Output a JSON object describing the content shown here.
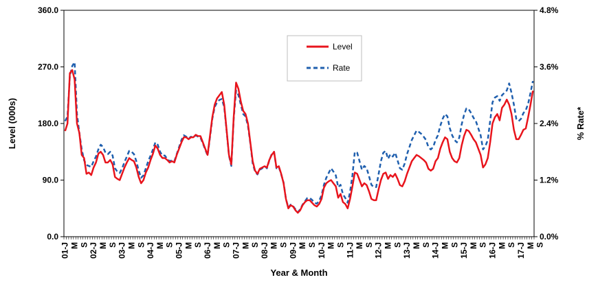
{
  "chart_data": {
    "type": "line",
    "xlabel": "Year & Month",
    "ylabel": "Level (000s)",
    "y2label": "% Rate*",
    "ylim": [
      0,
      360
    ],
    "y2lim": [
      0,
      4.8
    ],
    "yticks": [
      "0.0",
      "90.0",
      "180.0",
      "270.0",
      "360.0"
    ],
    "y2ticks": [
      "0.0%",
      "1.2%",
      "2.4%",
      "3.6%",
      "4.8%"
    ],
    "xtick_labels": [
      "01-J",
      "M",
      "S",
      "02-J",
      "M",
      "S",
      "03-J",
      "M",
      "S",
      "04-J",
      "M",
      "S",
      "05-J",
      "M",
      "S",
      "06-J",
      "M",
      "S",
      "07-J",
      "M",
      "S",
      "08-J",
      "M",
      "S",
      "09-J",
      "M",
      "S",
      "10-J",
      "M",
      "S",
      "11-J",
      "M",
      "S",
      "12-J",
      "M",
      "S",
      "13-J",
      "M",
      "S",
      "14-J",
      "M",
      "S",
      "15-J",
      "M",
      "S",
      "16-J",
      "M",
      "S",
      "17-J",
      "M",
      "S"
    ],
    "grid": false,
    "legend_position": "top-center",
    "colors": {
      "level": "#e8141c",
      "rate": "#1f5fae"
    },
    "series": [
      {
        "name": "Level",
        "axis": "left",
        "style": "solid",
        "values": [
          168,
          180,
          260,
          265,
          250,
          180,
          165,
          130,
          125,
          100,
          102,
          98,
          110,
          118,
          132,
          135,
          130,
          118,
          118,
          122,
          115,
          95,
          92,
          90,
          100,
          110,
          118,
          125,
          122,
          120,
          110,
          95,
          85,
          90,
          102,
          110,
          122,
          132,
          145,
          140,
          130,
          125,
          125,
          122,
          118,
          120,
          118,
          130,
          140,
          150,
          158,
          158,
          155,
          158,
          158,
          162,
          160,
          160,
          150,
          140,
          130,
          160,
          190,
          210,
          220,
          225,
          230,
          210,
          170,
          130,
          115,
          190,
          245,
          235,
          215,
          200,
          195,
          180,
          150,
          120,
          105,
          100,
          108,
          110,
          112,
          110,
          122,
          130,
          135,
          110,
          112,
          100,
          85,
          60,
          45,
          50,
          48,
          42,
          38,
          42,
          50,
          55,
          58,
          58,
          54,
          50,
          48,
          52,
          60,
          78,
          85,
          88,
          90,
          85,
          80,
          62,
          68,
          55,
          52,
          45,
          60,
          80,
          102,
          100,
          90,
          80,
          85,
          82,
          72,
          60,
          58,
          58,
          75,
          90,
          100,
          102,
          92,
          98,
          95,
          100,
          92,
          82,
          80,
          88,
          100,
          110,
          120,
          125,
          130,
          128,
          125,
          122,
          118,
          108,
          105,
          108,
          120,
          125,
          140,
          150,
          158,
          155,
          135,
          125,
          120,
          118,
          125,
          145,
          160,
          170,
          168,
          162,
          155,
          150,
          140,
          130,
          110,
          115,
          125,
          150,
          180,
          190,
          195,
          185,
          205,
          210,
          218,
          210,
          195,
          170,
          155,
          155,
          162,
          170,
          172,
          190,
          210,
          232
        ]
      },
      {
        "name": "Rate",
        "axis": "right",
        "style": "dashed",
        "values": [
          2.45,
          2.55,
          3.4,
          3.62,
          3.7,
          2.6,
          2.2,
          1.85,
          1.62,
          1.52,
          1.5,
          1.48,
          1.6,
          1.7,
          1.85,
          1.95,
          1.9,
          1.78,
          1.75,
          1.8,
          1.72,
          1.45,
          1.38,
          1.35,
          1.45,
          1.58,
          1.7,
          1.82,
          1.8,
          1.75,
          1.6,
          1.4,
          1.25,
          1.3,
          1.45,
          1.6,
          1.72,
          1.85,
          2.0,
          1.95,
          1.8,
          1.72,
          1.72,
          1.65,
          1.6,
          1.62,
          1.6,
          1.75,
          1.9,
          2.05,
          2.15,
          2.12,
          2.08,
          2.12,
          2.1,
          2.15,
          2.12,
          2.1,
          1.98,
          1.85,
          1.72,
          2.1,
          2.5,
          2.75,
          2.85,
          2.9,
          2.92,
          2.75,
          2.25,
          1.72,
          1.5,
          2.5,
          3.1,
          3.0,
          2.8,
          2.6,
          2.55,
          2.35,
          1.98,
          1.55,
          1.38,
          1.32,
          1.42,
          1.45,
          1.5,
          1.45,
          1.62,
          1.75,
          1.8,
          1.45,
          1.48,
          1.32,
          1.15,
          0.8,
          0.62,
          0.68,
          0.65,
          0.58,
          0.52,
          0.58,
          0.68,
          0.75,
          0.82,
          0.82,
          0.78,
          0.72,
          0.7,
          0.76,
          0.88,
          1.1,
          1.25,
          1.35,
          1.45,
          1.38,
          1.3,
          1.05,
          1.1,
          0.9,
          0.82,
          0.72,
          0.95,
          1.3,
          1.8,
          1.78,
          1.6,
          1.42,
          1.5,
          1.45,
          1.28,
          1.1,
          1.05,
          1.05,
          1.32,
          1.6,
          1.78,
          1.82,
          1.65,
          1.75,
          1.7,
          1.78,
          1.62,
          1.45,
          1.42,
          1.55,
          1.75,
          1.9,
          2.05,
          2.15,
          2.25,
          2.22,
          2.18,
          2.12,
          2.05,
          1.9,
          1.85,
          1.9,
          2.05,
          2.15,
          2.35,
          2.5,
          2.6,
          2.55,
          2.3,
          2.15,
          2.05,
          2.0,
          2.1,
          2.38,
          2.58,
          2.72,
          2.7,
          2.62,
          2.52,
          2.45,
          2.3,
          2.15,
          1.85,
          1.92,
          2.05,
          2.45,
          2.85,
          2.95,
          2.98,
          2.88,
          3.0,
          3.05,
          3.1,
          3.25,
          3.05,
          2.8,
          2.5,
          2.45,
          2.5,
          2.62,
          2.68,
          2.82,
          3.05,
          3.3
        ]
      }
    ]
  }
}
